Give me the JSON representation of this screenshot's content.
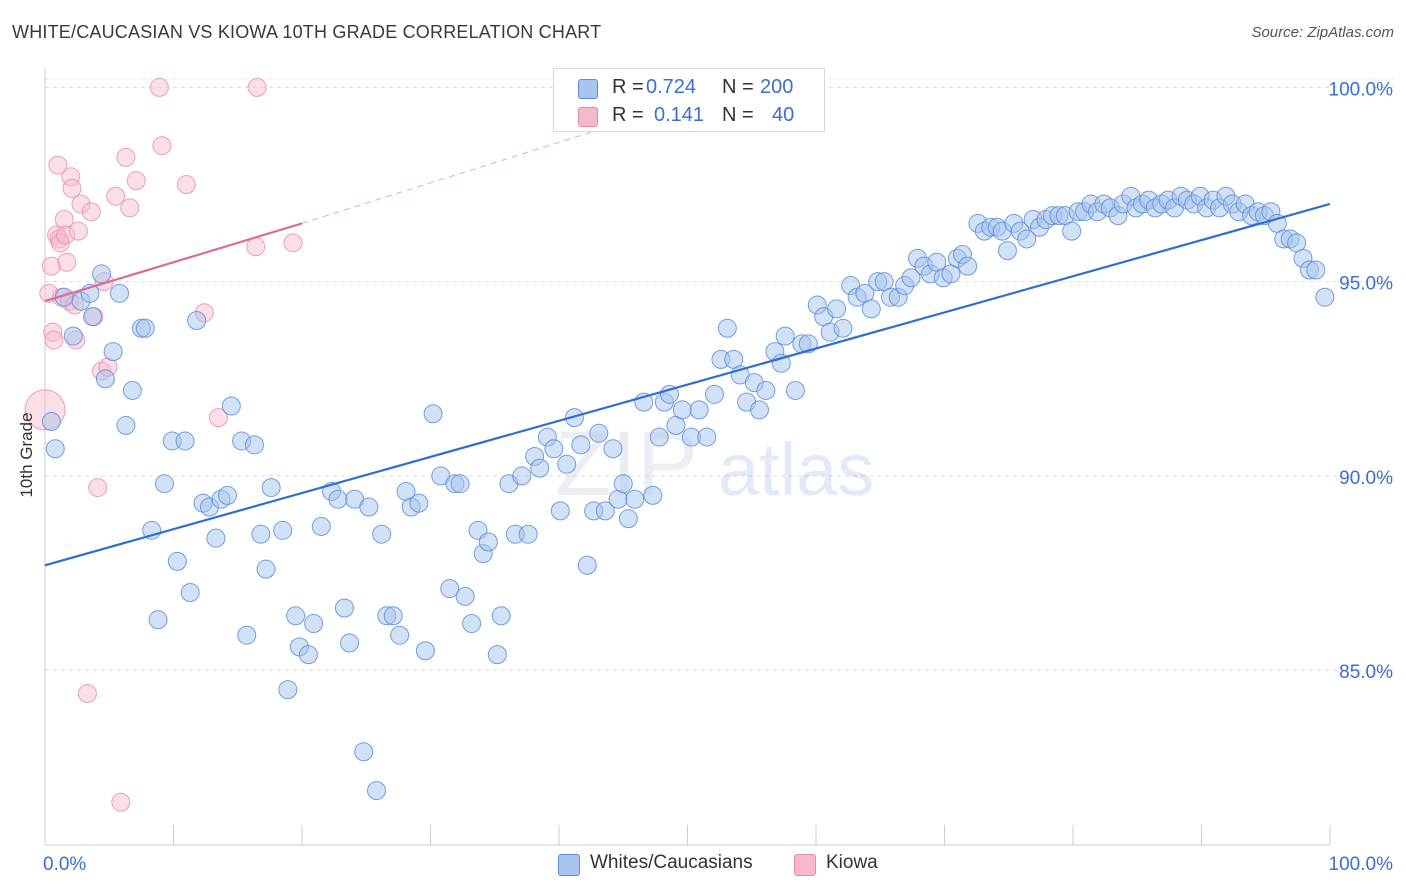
{
  "title": "WHITE/CAUCASIAN VS KIOWA 10TH GRADE CORRELATION CHART",
  "source": "Source: ZipAtlas.com",
  "watermark": {
    "zip": "ZIP",
    "atlas": "atlas"
  },
  "legend": {
    "rows": [
      {
        "r_label": "R =",
        "r_value": "0.724",
        "n_label": "N =",
        "n_value": "200",
        "color": "#a8c4ef"
      },
      {
        "r_label": "R =",
        "r_value": "0.141",
        "n_label": "N =",
        "n_value": "40",
        "color": "#f6b8cb"
      }
    ]
  },
  "bottom_legend": [
    {
      "label": "Whites/Caucasians",
      "color": "#a8c4ef"
    },
    {
      "label": "Kiowa",
      "color": "#f6b8cb"
    }
  ],
  "chart_data": {
    "type": "scatter",
    "title": "WHITE/CAUCASIAN VS KIOWA 10TH GRADE CORRELATION CHART",
    "xlabel": "",
    "ylabel": "10th Grade",
    "xlim": [
      0,
      100
    ],
    "ylim": [
      80.5,
      100.5
    ],
    "x_tick_labels": [
      "0.0%",
      "100.0%"
    ],
    "y_ticks": [
      85,
      90,
      95,
      100
    ],
    "y_tick_labels": [
      "85.0%",
      "90.0%",
      "95.0%",
      "100.0%"
    ],
    "grid": true,
    "legend_position": "top-center",
    "colors": {
      "blue_fill": "#a8c4ef",
      "blue_stroke": "#5b8fd9",
      "blue_line": "#2f6fcf",
      "pink_fill": "#f6b8cb",
      "pink_stroke": "#e98aa8",
      "pink_line": "#e06a92",
      "tick_label": "#3a6fd1"
    },
    "series": [
      {
        "name": "Whites/Caucasians",
        "r": 0.724,
        "n": 200,
        "trend": {
          "x": [
            0,
            100
          ],
          "y": [
            87.7,
            97.0
          ]
        },
        "points": [
          [
            0.5,
            91.4
          ],
          [
            0.8,
            90.7
          ],
          [
            1.5,
            94.6
          ],
          [
            2.2,
            93.6
          ],
          [
            2.8,
            94.5
          ],
          [
            3.5,
            94.7
          ],
          [
            3.7,
            94.1
          ],
          [
            4.4,
            95.2
          ],
          [
            4.7,
            92.5
          ],
          [
            5.3,
            93.2
          ],
          [
            5.8,
            94.7
          ],
          [
            6.3,
            91.3
          ],
          [
            6.8,
            92.2
          ],
          [
            7.5,
            93.8
          ],
          [
            7.8,
            93.8
          ],
          [
            8.3,
            88.6
          ],
          [
            8.8,
            86.3
          ],
          [
            9.3,
            89.8
          ],
          [
            9.9,
            90.9
          ],
          [
            10.3,
            87.8
          ],
          [
            10.9,
            90.9
          ],
          [
            11.3,
            87.0
          ],
          [
            11.8,
            94.0
          ],
          [
            12.3,
            89.3
          ],
          [
            12.8,
            89.2
          ],
          [
            13.3,
            88.4
          ],
          [
            13.7,
            89.4
          ],
          [
            14.2,
            89.5
          ],
          [
            14.5,
            91.8
          ],
          [
            15.3,
            90.9
          ],
          [
            15.7,
            85.9
          ],
          [
            16.3,
            90.8
          ],
          [
            16.8,
            88.5
          ],
          [
            17.2,
            87.6
          ],
          [
            17.6,
            89.7
          ],
          [
            18.5,
            88.6
          ],
          [
            18.9,
            84.5
          ],
          [
            19.5,
            86.4
          ],
          [
            19.8,
            85.6
          ],
          [
            20.5,
            85.4
          ],
          [
            20.9,
            86.2
          ],
          [
            21.5,
            88.7
          ],
          [
            22.3,
            89.6
          ],
          [
            22.8,
            89.4
          ],
          [
            23.3,
            86.6
          ],
          [
            23.7,
            85.7
          ],
          [
            24.1,
            89.4
          ],
          [
            24.8,
            82.9
          ],
          [
            25.2,
            89.2
          ],
          [
            25.8,
            81.9
          ],
          [
            26.2,
            88.5
          ],
          [
            26.6,
            86.4
          ],
          [
            27.1,
            86.4
          ],
          [
            27.6,
            85.9
          ],
          [
            28.1,
            89.6
          ],
          [
            28.5,
            89.2
          ],
          [
            29.1,
            89.3
          ],
          [
            29.6,
            85.5
          ],
          [
            30.2,
            91.6
          ],
          [
            30.8,
            90.0
          ],
          [
            31.5,
            87.1
          ],
          [
            31.9,
            89.8
          ],
          [
            32.3,
            89.8
          ],
          [
            32.7,
            86.9
          ],
          [
            33.2,
            86.2
          ],
          [
            33.7,
            88.6
          ],
          [
            34.1,
            88.0
          ],
          [
            34.5,
            88.3
          ],
          [
            35.2,
            85.4
          ],
          [
            35.5,
            86.4
          ],
          [
            36.1,
            89.8
          ],
          [
            36.6,
            88.5
          ],
          [
            37.1,
            90.0
          ],
          [
            37.6,
            88.5
          ],
          [
            38.1,
            90.5
          ],
          [
            38.5,
            90.2
          ],
          [
            39.1,
            91.0
          ],
          [
            39.6,
            90.7
          ],
          [
            40.1,
            89.1
          ],
          [
            40.6,
            90.3
          ],
          [
            41.2,
            91.5
          ],
          [
            41.7,
            90.8
          ],
          [
            42.2,
            87.7
          ],
          [
            42.7,
            89.1
          ],
          [
            43.1,
            91.1
          ],
          [
            43.6,
            89.1
          ],
          [
            44.2,
            90.7
          ],
          [
            44.6,
            89.4
          ],
          [
            45.0,
            89.8
          ],
          [
            45.4,
            88.9
          ],
          [
            45.9,
            89.4
          ],
          [
            46.6,
            91.9
          ],
          [
            47.3,
            89.5
          ],
          [
            47.8,
            91.0
          ],
          [
            48.2,
            91.9
          ],
          [
            48.6,
            92.1
          ],
          [
            49.1,
            91.3
          ],
          [
            49.6,
            91.7
          ],
          [
            50.3,
            91.0
          ],
          [
            50.9,
            91.7
          ],
          [
            51.5,
            91.0
          ],
          [
            52.1,
            92.1
          ],
          [
            52.6,
            93.0
          ],
          [
            53.1,
            93.8
          ],
          [
            53.6,
            93.0
          ],
          [
            54.1,
            92.6
          ],
          [
            54.6,
            91.9
          ],
          [
            55.2,
            92.4
          ],
          [
            55.6,
            91.7
          ],
          [
            56.1,
            92.2
          ],
          [
            56.8,
            93.2
          ],
          [
            57.3,
            92.9
          ],
          [
            57.6,
            93.6
          ],
          [
            58.4,
            92.2
          ],
          [
            58.9,
            93.4
          ],
          [
            59.4,
            93.4
          ],
          [
            60.1,
            94.4
          ],
          [
            60.6,
            94.1
          ],
          [
            61.1,
            93.7
          ],
          [
            61.6,
            94.3
          ],
          [
            62.1,
            93.8
          ],
          [
            62.7,
            94.9
          ],
          [
            63.2,
            94.6
          ],
          [
            63.8,
            94.7
          ],
          [
            64.3,
            94.3
          ],
          [
            64.8,
            95.0
          ],
          [
            65.3,
            95.0
          ],
          [
            65.8,
            94.6
          ],
          [
            66.4,
            94.6
          ],
          [
            66.9,
            94.9
          ],
          [
            67.4,
            95.1
          ],
          [
            67.9,
            95.6
          ],
          [
            68.4,
            95.4
          ],
          [
            68.9,
            95.2
          ],
          [
            69.4,
            95.5
          ],
          [
            69.9,
            95.1
          ],
          [
            70.5,
            95.2
          ],
          [
            71.0,
            95.6
          ],
          [
            71.4,
            95.7
          ],
          [
            71.8,
            95.4
          ],
          [
            72.6,
            96.5
          ],
          [
            73.1,
            96.3
          ],
          [
            73.6,
            96.4
          ],
          [
            74.1,
            96.4
          ],
          [
            74.5,
            96.3
          ],
          [
            74.9,
            95.8
          ],
          [
            75.4,
            96.5
          ],
          [
            75.9,
            96.3
          ],
          [
            76.4,
            96.1
          ],
          [
            76.9,
            96.6
          ],
          [
            77.4,
            96.4
          ],
          [
            77.9,
            96.6
          ],
          [
            78.4,
            96.7
          ],
          [
            78.9,
            96.7
          ],
          [
            79.4,
            96.7
          ],
          [
            79.9,
            96.3
          ],
          [
            80.4,
            96.8
          ],
          [
            80.9,
            96.8
          ],
          [
            81.4,
            97.0
          ],
          [
            81.9,
            96.8
          ],
          [
            82.4,
            97.0
          ],
          [
            82.9,
            96.9
          ],
          [
            83.5,
            96.7
          ],
          [
            83.9,
            97.0
          ],
          [
            84.5,
            97.2
          ],
          [
            84.9,
            96.9
          ],
          [
            85.4,
            97.0
          ],
          [
            85.9,
            97.1
          ],
          [
            86.4,
            96.9
          ],
          [
            86.9,
            97.0
          ],
          [
            87.4,
            97.1
          ],
          [
            87.9,
            96.9
          ],
          [
            88.4,
            97.2
          ],
          [
            88.9,
            97.1
          ],
          [
            89.4,
            97.0
          ],
          [
            89.9,
            97.2
          ],
          [
            90.4,
            96.9
          ],
          [
            90.9,
            97.1
          ],
          [
            91.4,
            96.9
          ],
          [
            91.9,
            97.2
          ],
          [
            92.4,
            97.0
          ],
          [
            92.9,
            96.8
          ],
          [
            93.4,
            97.0
          ],
          [
            93.9,
            96.7
          ],
          [
            94.4,
            96.8
          ],
          [
            94.9,
            96.7
          ],
          [
            95.4,
            96.8
          ],
          [
            95.9,
            96.5
          ],
          [
            96.4,
            96.1
          ],
          [
            96.9,
            96.1
          ],
          [
            97.4,
            96.0
          ],
          [
            97.9,
            95.6
          ],
          [
            98.4,
            95.3
          ],
          [
            98.9,
            95.3
          ],
          [
            99.6,
            94.6
          ]
        ]
      },
      {
        "name": "Kiowa",
        "r": 0.141,
        "n": 40,
        "trend": {
          "x": [
            0,
            20
          ],
          "y": [
            94.5,
            96.5
          ],
          "dashed_to": {
            "x": [
              20,
              43
            ],
            "y": [
              96.5,
              98.9
            ]
          }
        },
        "points": [
          [
            0.0,
            91.7
          ],
          [
            0.3,
            94.7
          ],
          [
            0.5,
            95.4
          ],
          [
            0.6,
            93.7
          ],
          [
            0.7,
            93.5
          ],
          [
            0.9,
            96.2
          ],
          [
            1.0,
            98.0
          ],
          [
            1.1,
            96.1
          ],
          [
            1.2,
            96.0
          ],
          [
            1.3,
            94.6
          ],
          [
            1.5,
            96.6
          ],
          [
            1.6,
            96.2
          ],
          [
            1.7,
            95.5
          ],
          [
            1.9,
            94.5
          ],
          [
            2.0,
            97.7
          ],
          [
            2.1,
            97.4
          ],
          [
            2.3,
            94.4
          ],
          [
            2.4,
            93.5
          ],
          [
            2.6,
            96.3
          ],
          [
            2.8,
            97.0
          ],
          [
            3.3,
            84.4
          ],
          [
            3.6,
            96.8
          ],
          [
            3.8,
            94.1
          ],
          [
            4.1,
            89.7
          ],
          [
            4.4,
            92.7
          ],
          [
            4.6,
            95.0
          ],
          [
            4.9,
            92.8
          ],
          [
            5.5,
            97.2
          ],
          [
            5.9,
            81.6
          ],
          [
            6.3,
            98.2
          ],
          [
            6.6,
            96.9
          ],
          [
            7.1,
            97.6
          ],
          [
            8.9,
            100.0
          ],
          [
            9.1,
            98.5
          ],
          [
            11.0,
            97.5
          ],
          [
            12.4,
            94.2
          ],
          [
            13.5,
            91.5
          ],
          [
            16.4,
            95.9
          ],
          [
            16.5,
            100.0
          ],
          [
            19.3,
            96.0
          ]
        ]
      }
    ]
  }
}
